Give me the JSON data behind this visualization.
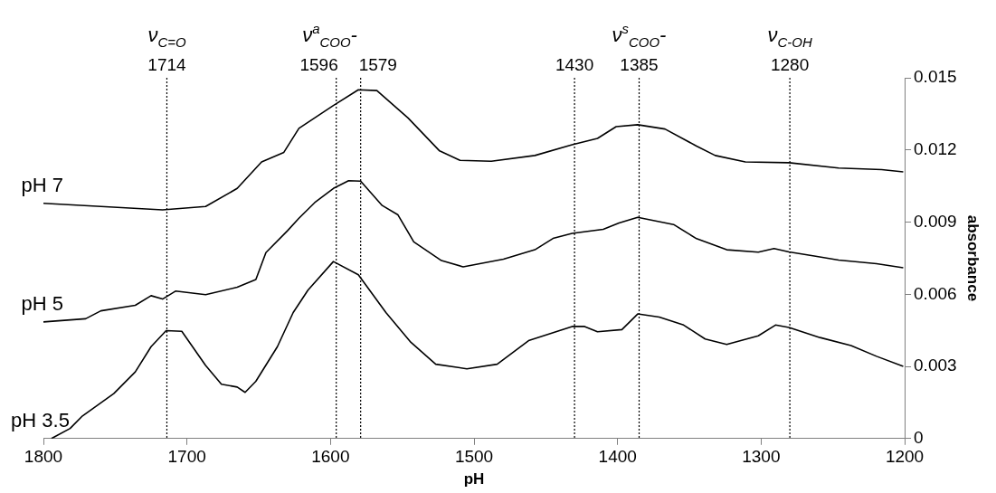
{
  "chart_data": {
    "type": "line",
    "xlabel": "pH",
    "ylabel": "absorbance",
    "xlim": [
      1800,
      1200
    ],
    "xticks": [
      1800,
      1700,
      1600,
      1500,
      1400,
      1300,
      1200
    ],
    "ylim": [
      0,
      0.015
    ],
    "yticks": [
      0,
      0.003,
      0.006,
      0.009,
      0.012,
      0.015
    ],
    "grid": false,
    "legend": false,
    "marker": "none",
    "line_style": "solid",
    "series": [
      {
        "name": "pH 7",
        "color": "#000000",
        "x": [
          1800,
          1717,
          1687,
          1665,
          1648,
          1632.5,
          1622,
          1598,
          1580.6,
          1567.7,
          1546,
          1524,
          1509.8,
          1488,
          1457.6,
          1431.7,
          1414,
          1401,
          1386,
          1367,
          1345,
          1332,
          1311,
          1280.6,
          1246,
          1216,
          1201
        ],
        "values": [
          0.00978,
          0.00951,
          0.00965,
          0.0104,
          0.0115,
          0.0119,
          0.0129,
          0.01385,
          0.0145,
          0.01447,
          0.01333,
          0.01196,
          0.01157,
          0.01153,
          0.01177,
          0.01222,
          0.01248,
          0.01297,
          0.01305,
          0.01287,
          0.01216,
          0.01177,
          0.0115,
          0.01147,
          0.01125,
          0.01118,
          0.01109
        ]
      },
      {
        "name": "pH 5",
        "color": "#000000",
        "x": [
          1800,
          1770.6,
          1760,
          1736,
          1725,
          1717,
          1708,
          1687,
          1665,
          1652,
          1645,
          1630,
          1622,
          1611,
          1598,
          1587.4,
          1579,
          1564,
          1553,
          1542,
          1522.7,
          1507.6,
          1479.5,
          1457.6,
          1445,
          1431.7,
          1410,
          1399,
          1386,
          1361,
          1345,
          1324,
          1302,
          1291,
          1280.6,
          1263,
          1246,
          1219.6,
          1201
        ],
        "values": [
          0.00485,
          0.00498,
          0.00531,
          0.00554,
          0.00594,
          0.0058,
          0.00613,
          0.00598,
          0.00629,
          0.00661,
          0.00773,
          0.00864,
          0.00916,
          0.00981,
          0.0104,
          0.01072,
          0.0107,
          0.00969,
          0.0093,
          0.00818,
          0.0074,
          0.00714,
          0.00746,
          0.00785,
          0.00832,
          0.00853,
          0.0087,
          0.00896,
          0.0092,
          0.0089,
          0.00831,
          0.00785,
          0.00775,
          0.0079,
          0.00776,
          0.00759,
          0.00742,
          0.00727,
          0.0071
        ]
      },
      {
        "name": "pH 3.5",
        "color": "#000000",
        "x": [
          1794.4,
          1781.4,
          1772.8,
          1751,
          1736,
          1725,
          1714.5,
          1703.6,
          1687,
          1676,
          1665,
          1659.5,
          1652,
          1637,
          1626,
          1615.7,
          1598,
          1580.6,
          1561.4,
          1544,
          1526.7,
          1505,
          1483.9,
          1462,
          1431.7,
          1423,
          1414,
          1397,
          1386,
          1371,
          1354,
          1339,
          1324,
          1302,
          1290,
          1280.6,
          1259,
          1237.4,
          1219.6,
          1201
        ],
        "values": [
          0,
          0.00042,
          0.00094,
          0.00187,
          0.00277,
          0.00382,
          0.00449,
          0.00446,
          0.00304,
          0.00226,
          0.00214,
          0.00192,
          0.00238,
          0.00382,
          0.00524,
          0.00617,
          0.00736,
          0.00681,
          0.00524,
          0.004,
          0.00309,
          0.0029,
          0.00309,
          0.00407,
          0.00466,
          0.00466,
          0.00444,
          0.00453,
          0.00518,
          0.00505,
          0.00472,
          0.00414,
          0.00391,
          0.00427,
          0.00472,
          0.00462,
          0.0042,
          0.00387,
          0.00342,
          0.003
        ]
      }
    ],
    "ref_lines": [
      {
        "axis": "x",
        "value": 1714,
        "label": "ν$_{C=O}$\n1714",
        "color": "#000000",
        "line_style": "dotted"
      },
      {
        "axis": "x",
        "value": 1596,
        "label": "ν$^{a}$$_{COO}$-\n1596",
        "color": "#000000",
        "line_style": "dotted"
      },
      {
        "axis": "x",
        "value": 1579,
        "label": "1579",
        "color": "#000000",
        "line_style": "dotted"
      },
      {
        "axis": "x",
        "value": 1430,
        "label": "1430",
        "color": "#000000",
        "line_style": "dotted"
      },
      {
        "axis": "x",
        "value": 1385,
        "label": "ν$^{s}$$_{COO}$-\n1385",
        "color": "#000000",
        "line_style": "dotted"
      },
      {
        "axis": "x",
        "value": 1280,
        "label": "ν$_{C-OH}$\n1280",
        "color": "#000000",
        "line_style": "dotted"
      }
    ]
  }
}
